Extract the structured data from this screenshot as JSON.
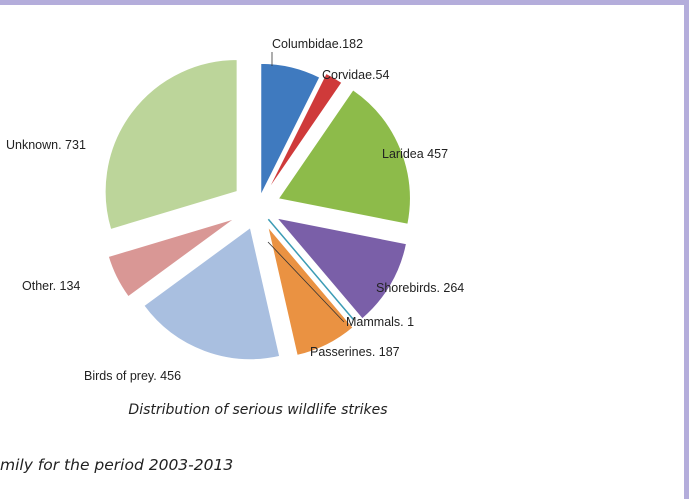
{
  "colors": {
    "border": "#b4addb",
    "background": "#ffffff",
    "leader_line": "#333333"
  },
  "caption": "Distribution of serious wildlife strikes",
  "footer_text": "mily for the period 2003-2013",
  "chart_data": {
    "type": "pie",
    "title": "",
    "exploded": true,
    "slices": [
      {
        "name": "Columbidae",
        "value": 182,
        "label": "Columbidae.182",
        "color": "#3f7abf"
      },
      {
        "name": "Corvidae",
        "value": 54,
        "label": "Corvidae.54",
        "color": "#cf3a3a"
      },
      {
        "name": "Laridea",
        "value": 457,
        "label": "Laridea 457",
        "color": "#8dbb4a"
      },
      {
        "name": "Shorebirds",
        "value": 264,
        "label": "Shorebirds. 264",
        "color": "#7a5fa8"
      },
      {
        "name": "Mammals",
        "value": 1,
        "label": "Mammals. 1",
        "color": "#3c9cb5"
      },
      {
        "name": "Passerines",
        "value": 187,
        "label": "Passerines. 187",
        "color": "#ea9242"
      },
      {
        "name": "Birds of prey",
        "value": 456,
        "label": "Birds of prey. 456",
        "color": "#a9bfe0"
      },
      {
        "name": "Other",
        "value": 134,
        "label": "Other. 134",
        "color": "#d99795"
      },
      {
        "name": "Unknown",
        "value": 731,
        "label": "Unknown. 731",
        "color": "#bcd59a"
      }
    ]
  }
}
